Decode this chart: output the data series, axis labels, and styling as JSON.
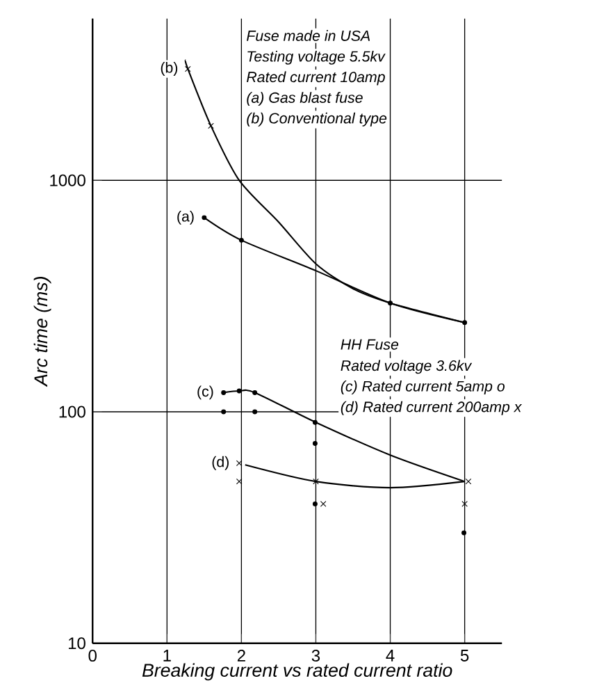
{
  "chart_data": {
    "type": "line",
    "xlabel": "Breaking current vs rated current ratio",
    "ylabel": "Arc time (ms)",
    "xlim": [
      0,
      5.5
    ],
    "xticks": [
      0,
      1,
      2,
      3,
      4,
      5
    ],
    "ylim": [
      10,
      5000
    ],
    "yticks": [
      10,
      100,
      1000
    ],
    "log": "y",
    "grid": true,
    "series": [
      {
        "type": "line",
        "color": "#000000",
        "marker": "none",
        "x": [
          1.25,
          1.28,
          1.59,
          1.97,
          2.5,
          3,
          3.5,
          4,
          5
        ],
        "values": [
          3300,
          3030,
          1720,
          1000,
          660,
          436,
          340,
          295,
          243
        ]
      },
      {
        "type": "scatter",
        "color": "#000000",
        "marker": "cross",
        "x": [
          1.28,
          1.59
        ],
        "values": [
          3030,
          1720
        ]
      },
      {
        "type": "line",
        "color": "#000000",
        "marker": "none",
        "x": [
          1.5,
          2,
          3,
          4,
          5
        ],
        "values": [
          690,
          551,
          407,
          295,
          243
        ]
      },
      {
        "type": "scatter",
        "color": "#000000",
        "marker": "circle",
        "x": [
          1.5,
          2,
          4,
          5
        ],
        "values": [
          690,
          551,
          295,
          243
        ]
      },
      {
        "type": "line",
        "color": "#000000",
        "marker": "none",
        "x": [
          1.76,
          1.97,
          2.18,
          3,
          4,
          5
        ],
        "values": [
          121,
          123,
          121,
          90,
          65,
          50
        ]
      },
      {
        "type": "scatter",
        "color": "#000000",
        "marker": "circle",
        "x": [
          1.76,
          1.97,
          2.18,
          1.76,
          2.18,
          2.99,
          2.99,
          2.99,
          4.99
        ],
        "values": [
          121,
          123,
          121,
          100,
          100,
          90,
          73,
          40,
          30
        ]
      },
      {
        "type": "line",
        "color": "#000000",
        "marker": "none",
        "x": [
          2.05,
          3,
          4,
          5
        ],
        "values": [
          59,
          50,
          47,
          50
        ]
      },
      {
        "type": "scatter",
        "color": "#000000",
        "marker": "cross",
        "x": [
          1.97,
          1.97,
          3,
          3.1,
          5.05,
          5
        ],
        "values": [
          60,
          50,
          50,
          40,
          50,
          40
        ]
      }
    ],
    "annotations": [
      "Fuse made in USA",
      "Testing voltage 5.5kv",
      "Rated current 10amp",
      "(a) Gas blast fuse",
      "(b) Conventional type",
      "HH Fuse",
      "Rated voltage 3.6kv",
      "(c) Rated current 5amp o",
      "(d) Rated current 200amp x",
      {
        "text": "(a)",
        "x": 1.5,
        "y": 690
      },
      {
        "text": "(b)",
        "x": 1.28,
        "y": 3030
      },
      {
        "text": "(c)",
        "x": 1.76,
        "y": 121
      },
      {
        "text": "(d)",
        "x": 1.97,
        "y": 60
      }
    ]
  }
}
